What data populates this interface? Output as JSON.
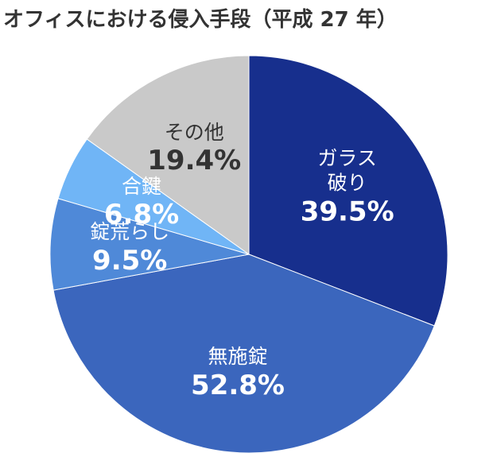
{
  "chart_data": {
    "type": "pie",
    "title": "オフィスにおける侵入手段（平成 27 年）",
    "categories": [
      "ガラス\n破り",
      "無施錠",
      "錠荒らし",
      "合鍵",
      "その他"
    ],
    "values": [
      39.5,
      52.8,
      9.5,
      6.8,
      19.4
    ],
    "value_labels": [
      "39.5%",
      "52.8%",
      "9.5%",
      "6.8%",
      "19.4%"
    ],
    "colors": [
      "#172f8d",
      "#3b66bd",
      "#4f89d8",
      "#70b5f6",
      "#c9c9c9"
    ],
    "label_colors": [
      "#ffffff",
      "#ffffff",
      "#ffffff",
      "#ffffff",
      "#333333"
    ]
  }
}
